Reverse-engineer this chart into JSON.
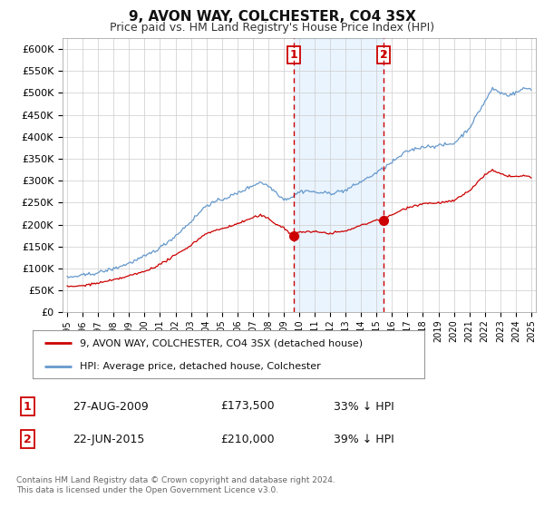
{
  "title": "9, AVON WAY, COLCHESTER, CO4 3SX",
  "subtitle": "Price paid vs. HM Land Registry's House Price Index (HPI)",
  "ylim": [
    0,
    625000
  ],
  "yticks": [
    0,
    50000,
    100000,
    150000,
    200000,
    250000,
    300000,
    350000,
    400000,
    450000,
    500000,
    550000,
    600000
  ],
  "ytick_labels": [
    "£0",
    "£50K",
    "£100K",
    "£150K",
    "£200K",
    "£250K",
    "£300K",
    "£350K",
    "£400K",
    "£450K",
    "£500K",
    "£550K",
    "£600K"
  ],
  "hpi_color": "#6699cc",
  "price_color": "#cc0000",
  "marker1_x": 2009.65,
  "marker1_y": 173500,
  "marker2_x": 2015.47,
  "marker2_y": 210000,
  "vline1_x": 2009.65,
  "vline2_x": 2015.47,
  "xmin": 1994.7,
  "xmax": 2025.3,
  "legend_label_red": "9, AVON WAY, COLCHESTER, CO4 3SX (detached house)",
  "legend_label_blue": "HPI: Average price, detached house, Colchester",
  "table_row1_num": "1",
  "table_row1_date": "27-AUG-2009",
  "table_row1_price": "£173,500",
  "table_row1_hpi": "33% ↓ HPI",
  "table_row2_num": "2",
  "table_row2_date": "22-JUN-2015",
  "table_row2_price": "£210,000",
  "table_row2_hpi": "39% ↓ HPI",
  "footnote": "Contains HM Land Registry data © Crown copyright and database right 2024.\nThis data is licensed under the Open Government Licence v3.0.",
  "bg_color": "#ffffff",
  "grid_color": "#cccccc",
  "shade_color": "#ddeeff"
}
